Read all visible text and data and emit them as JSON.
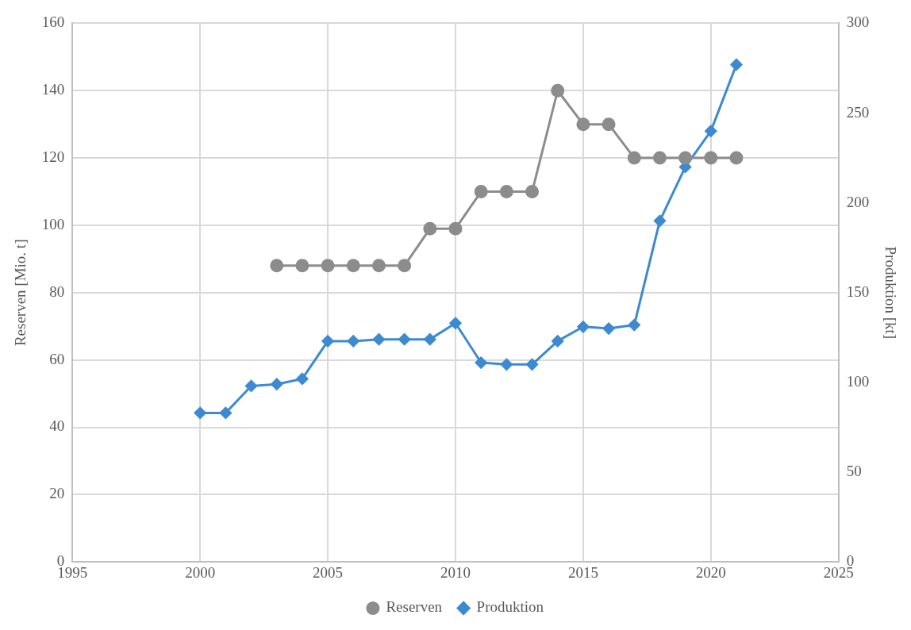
{
  "chart_data": {
    "type": "line",
    "x": [
      2000,
      2001,
      2002,
      2003,
      2004,
      2005,
      2006,
      2007,
      2008,
      2009,
      2010,
      2011,
      2012,
      2013,
      2014,
      2015,
      2016,
      2017,
      2018,
      2019,
      2020,
      2021
    ],
    "series": [
      {
        "name": "Reserven",
        "color": "#8c8c8c",
        "marker": "circle",
        "values": [
          null,
          null,
          null,
          88,
          88,
          88,
          88,
          88,
          88,
          99,
          99,
          110,
          110,
          110,
          140,
          130,
          130,
          120,
          120,
          120,
          120,
          120
        ]
      },
      {
        "name": "Produktion",
        "color": "#3d8ad0",
        "marker": "diamond",
        "axis": "y2",
        "values": [
          83,
          83,
          98,
          99,
          102,
          123,
          123,
          124,
          124,
          124,
          133,
          111,
          110,
          110,
          123,
          131,
          130,
          132,
          190,
          220,
          240,
          277
        ]
      }
    ],
    "ylabel": "Reserven [Mio. t]",
    "y2label": "Produktion [kt]",
    "xlim": [
      1995,
      2025
    ],
    "xticks": [
      1995,
      2000,
      2005,
      2010,
      2015,
      2020,
      2025
    ],
    "ylim": [
      0,
      160
    ],
    "yticks": [
      0,
      20,
      40,
      60,
      80,
      100,
      120,
      140,
      160
    ],
    "y2lim": [
      0,
      300
    ],
    "y2ticks": [
      0,
      50,
      100,
      150,
      200,
      250,
      300
    ],
    "grid": true,
    "legend": "bottom",
    "line_style": "solid"
  }
}
